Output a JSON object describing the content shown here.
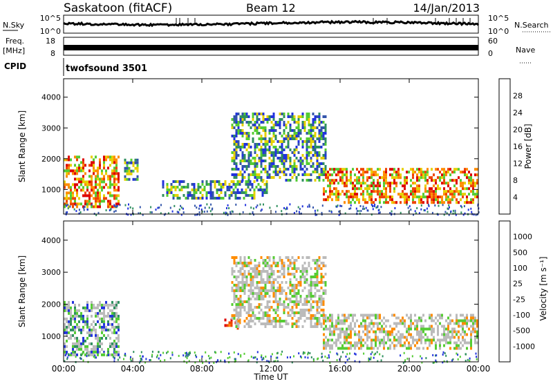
{
  "header": {
    "title": "Saskatoon (fitACF)",
    "beam": "Beam 12",
    "date": "14/Jan/2013"
  },
  "top_panels": {
    "nsky": {
      "label": "N.Sky",
      "ticks": [
        "10^5",
        "10^0"
      ]
    },
    "nsearch": {
      "label": "N.Search",
      "ticks": [
        "10^5",
        "10^0"
      ]
    },
    "freq": {
      "label_lines": [
        "Freq.",
        "[MHz]"
      ],
      "ticks": [
        "18",
        "8"
      ]
    },
    "nave": {
      "label": "Nave",
      "ticks": [
        "60",
        "0"
      ]
    },
    "cpid": {
      "label": "CPID",
      "value": "twofsound 3501"
    }
  },
  "colors": {
    "power": [
      "#2233dd",
      "#3355aa",
      "#2f8f5f",
      "#55cc33",
      "#e6d000",
      "#ff8c00",
      "#ee4400",
      "#dd0000"
    ],
    "velocity": [
      "#2233dd",
      "#2f8f5f",
      "#55cc33",
      "#bbbbbb",
      "#bbbbbb",
      "#ff8c00",
      "#ee4400",
      "#dd0000"
    ]
  },
  "chart_data": [
    {
      "type": "heatmap",
      "panel": "power",
      "ylabel": "Slant Range [km]",
      "yticks": [
        "4000",
        "3000",
        "2000",
        "1000"
      ],
      "ylim": [
        200,
        4600
      ],
      "xlim": [
        0,
        24
      ],
      "colorbar": {
        "label": "Power [dB]",
        "ticks": [
          "28",
          "24",
          "20",
          "16",
          "12",
          "8",
          "4"
        ],
        "range": [
          0,
          32
        ]
      },
      "echo_regions": [
        {
          "t_start": 0.0,
          "t_end": 3.2,
          "range_low": 400,
          "range_high": 2100,
          "level": "high"
        },
        {
          "t_start": 3.5,
          "t_end": 4.3,
          "range_low": 1300,
          "range_high": 2000,
          "level": "mid"
        },
        {
          "t_start": 5.7,
          "t_end": 11.8,
          "range_low": 700,
          "range_high": 1300,
          "level": "mid"
        },
        {
          "t_start": 9.7,
          "t_end": 15.2,
          "range_low": 1300,
          "range_high": 3500,
          "level": "mid"
        },
        {
          "t_start": 15.0,
          "t_end": 24.0,
          "range_low": 600,
          "range_high": 1700,
          "level": "high"
        }
      ]
    },
    {
      "type": "heatmap",
      "panel": "velocity",
      "ylabel": "Slant Range [km]",
      "yticks": [
        "4000",
        "3000",
        "2000",
        "1000"
      ],
      "ylim": [
        200,
        4600
      ],
      "xlim": [
        0,
        24
      ],
      "xlabel": "Time UT",
      "xticks": [
        "00:00",
        "04:00",
        "08:00",
        "12:00",
        "16:00",
        "20:00",
        "00:00"
      ],
      "colorbar": {
        "label": "Velocity [m s⁻¹]",
        "ticks": [
          "1000",
          "500",
          "100",
          "25",
          "-25",
          "-100",
          "-500",
          "-1000"
        ],
        "range": [
          -1000,
          1000
        ]
      },
      "echo_regions": [
        {
          "t_start": 0.0,
          "t_end": 3.2,
          "range_low": 400,
          "range_high": 2100,
          "level": "low"
        },
        {
          "t_start": 9.3,
          "t_end": 10.2,
          "range_low": 1250,
          "range_high": 1550,
          "level": "negative"
        },
        {
          "t_start": 9.7,
          "t_end": 15.2,
          "range_low": 1300,
          "range_high": 3500,
          "level": "ground"
        },
        {
          "t_start": 15.0,
          "t_end": 24.0,
          "range_low": 600,
          "range_high": 1700,
          "level": "ground"
        }
      ]
    }
  ]
}
